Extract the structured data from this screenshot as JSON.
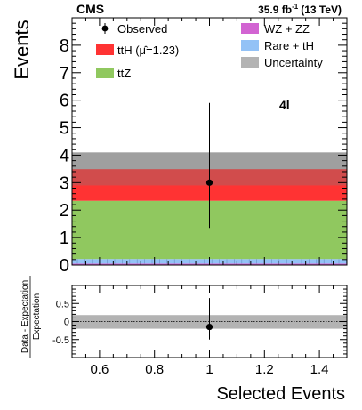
{
  "header": {
    "experiment": "CMS",
    "luminosity": "35.9 fb",
    "luminosity_exponent": "-1",
    "energy": "(13 TeV)",
    "channel": "4l"
  },
  "chart_data": [
    {
      "type": "bar",
      "stacked": true,
      "x_bin": [
        0.5,
        1.5
      ],
      "xlim": [
        0.5,
        1.5
      ],
      "ylim": [
        0,
        9
      ],
      "ylabel": "Events",
      "y_ticks": [
        "0",
        "1",
        "2",
        "3",
        "4",
        "5",
        "6",
        "7",
        "8"
      ],
      "series": [
        {
          "name": "WZ + ZZ",
          "value": 0.05,
          "color": "#d264d2"
        },
        {
          "name": "Rare + tH",
          "value": 0.17,
          "color": "#93c2f6"
        },
        {
          "name": "ttZ",
          "value": 2.12,
          "color": "#90c85f"
        },
        {
          "name": "ttH (μ̂=1.23)",
          "value": 1.15,
          "color": "#ff3333"
        }
      ],
      "uncertainty_band": {
        "name": "Uncertainty",
        "low": 2.9,
        "high": 4.1,
        "color": "#b3b3b3"
      },
      "observed": {
        "name": "Observed",
        "x": 1.0,
        "y": 3.0,
        "err_low": 1.65,
        "err_high": 2.9
      },
      "legend": [
        {
          "label": "Observed",
          "marker": "point"
        },
        {
          "label": "ttH (μ̂=1.23)",
          "color": "#ff3333"
        },
        {
          "label": "ttZ",
          "color": "#90c85f"
        },
        {
          "label": "WZ + ZZ",
          "color": "#d264d2"
        },
        {
          "label": "Rare + tH",
          "color": "#93c2f6"
        },
        {
          "label": "Uncertainty",
          "color": "#b3b3b3"
        }
      ]
    },
    {
      "type": "scatter",
      "xlim": [
        0.5,
        1.5
      ],
      "ylim": [
        -1,
        1
      ],
      "x_ticks": [
        "0.6",
        "0.8",
        "1",
        "1.2",
        "1.4"
      ],
      "y_ticks": [
        "0.5",
        "0",
        "-0.5"
      ],
      "xlabel": "Selected Events",
      "ylabel_numerator": "Data - Expectation",
      "ylabel_denominator": "Expectation",
      "band": {
        "low": -0.2,
        "high": 0.18
      },
      "point": {
        "x": 1.0,
        "y": -0.15,
        "err_low": 0.35,
        "err_high": 0.8
      }
    }
  ]
}
